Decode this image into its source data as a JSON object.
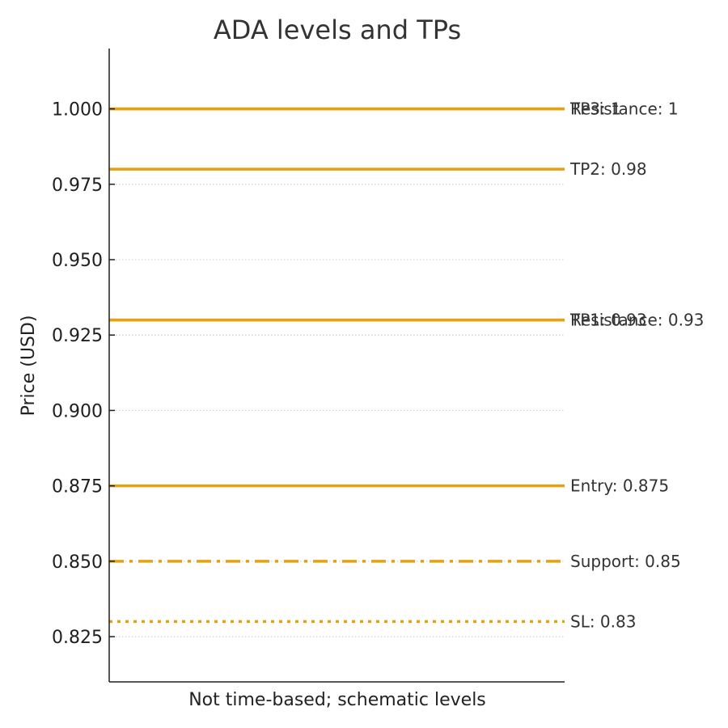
{
  "chart_data": {
    "type": "line",
    "title": "ADA levels and TPs",
    "xlabel": "Not time-based; schematic levels",
    "ylabel": "Price (USD)",
    "ylim": [
      0.81,
      1.02
    ],
    "yticks": [
      "0.825",
      "0.850",
      "0.875",
      "0.900",
      "0.925",
      "0.950",
      "0.975",
      "1.000"
    ],
    "grid": "horizontal-dotted",
    "color": "#e6a10f",
    "series": [
      {
        "name": "Resistance",
        "label": "Resistance: 1",
        "value": 1.0,
        "style": "solid"
      },
      {
        "name": "Resistance",
        "label": "Resistance: 0.93",
        "value": 0.93,
        "style": "solid"
      },
      {
        "name": "Entry",
        "label": "Entry: 0.875",
        "value": 0.875,
        "style": "solid"
      },
      {
        "name": "Support",
        "label": "Support: 0.85",
        "value": 0.85,
        "style": "dashdot"
      },
      {
        "name": "SL",
        "label": "SL: 0.83",
        "value": 0.83,
        "style": "dotted"
      },
      {
        "name": "TP1",
        "label": "TP1: 0.93",
        "value": 0.93,
        "style": "solid"
      },
      {
        "name": "TP2",
        "label": "TP2: 0.98",
        "value": 0.98,
        "style": "solid"
      },
      {
        "name": "TP3",
        "label": "TP3: 1",
        "value": 1.0,
        "style": "solid"
      }
    ]
  }
}
